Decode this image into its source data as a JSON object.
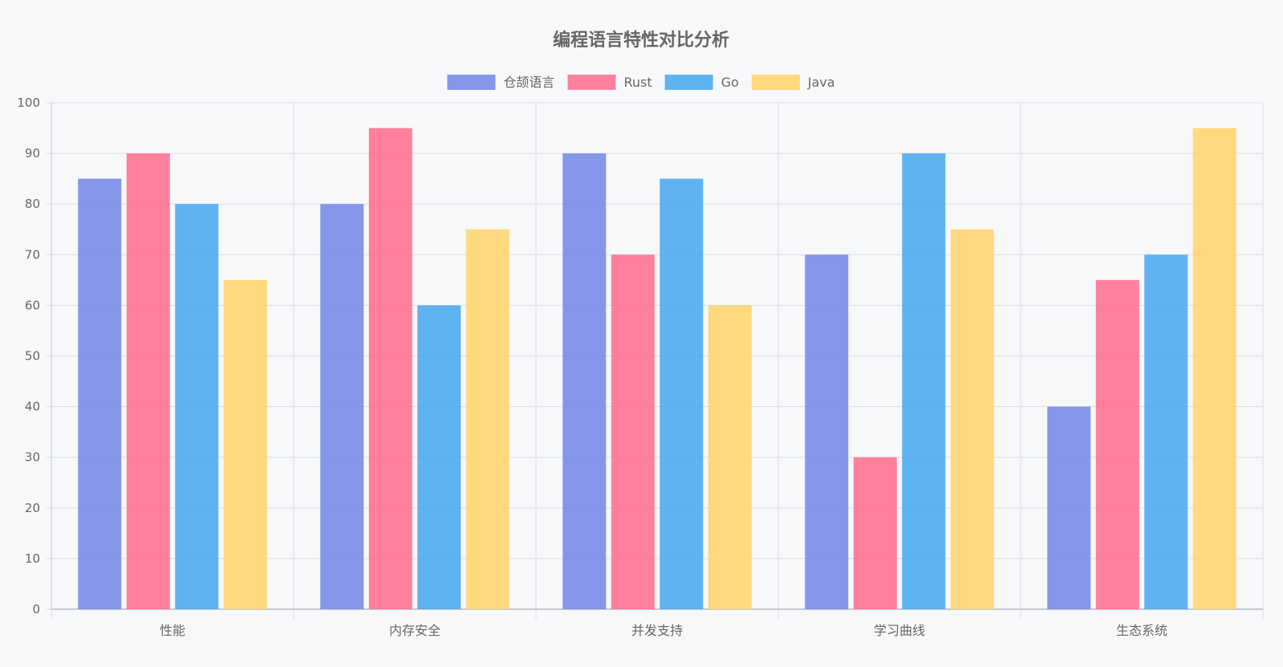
{
  "chart_data": {
    "type": "bar",
    "title": "编程语言特性对比分析",
    "xlabel": "",
    "ylabel": "",
    "categories": [
      "性能",
      "内存安全",
      "并发支持",
      "学习曲线",
      "生态系统"
    ],
    "series": [
      {
        "name": "仓颉语言",
        "color": "#7286e6",
        "values": [
          85,
          80,
          90,
          70,
          40
        ]
      },
      {
        "name": "Rust",
        "color": "#ff6b8b",
        "values": [
          90,
          95,
          70,
          30,
          65
        ]
      },
      {
        "name": "Go",
        "color": "#44a7ee",
        "values": [
          80,
          60,
          85,
          90,
          70
        ]
      },
      {
        "name": "Java",
        "color": "#ffd466",
        "values": [
          65,
          75,
          60,
          75,
          95
        ]
      }
    ],
    "ylim": [
      0,
      100
    ],
    "y_ticks": [
      "0",
      "10",
      "20",
      "30",
      "40",
      "50",
      "60",
      "70",
      "80",
      "90",
      "100"
    ],
    "grid": true,
    "legend": "top-center"
  }
}
